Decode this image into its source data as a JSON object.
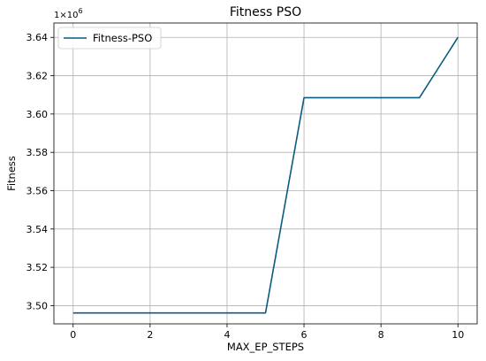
{
  "chart_data": {
    "type": "line",
    "title": "Fitness PSO",
    "xlabel": "MAX_EP_STEPS",
    "ylabel": "Fitness",
    "y_offset_text": "1e6",
    "xlim": [
      -0.5,
      10.5
    ],
    "ylim": [
      3.4905,
      3.6475
    ],
    "xticks": [
      0,
      2,
      4,
      6,
      8,
      10
    ],
    "yticks": [
      3.5,
      3.52,
      3.54,
      3.56,
      3.58,
      3.6,
      3.62,
      3.64
    ],
    "ytick_labels": [
      "3.50",
      "3.52",
      "3.54",
      "3.56",
      "3.58",
      "3.60",
      "3.62",
      "3.64"
    ],
    "grid": true,
    "legend_position": "top-left",
    "series": [
      {
        "name": "Fitness-PSO",
        "color": "#0b5a80",
        "x": [
          0,
          1,
          2,
          3,
          4,
          5,
          6,
          7,
          8,
          9,
          10
        ],
        "y": [
          3.4962,
          3.4962,
          3.4962,
          3.4962,
          3.4962,
          3.4962,
          3.6085,
          3.6085,
          3.6085,
          3.6085,
          3.64
        ]
      }
    ]
  }
}
